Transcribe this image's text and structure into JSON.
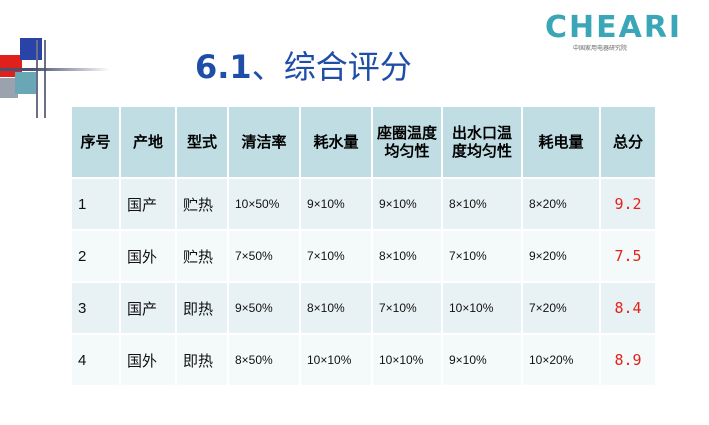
{
  "logo": {
    "main": "CHEARI",
    "sub": "中国家用电器研究院"
  },
  "title": {
    "number": "6.1",
    "text": "、综合评分"
  },
  "table": {
    "headers": [
      "序号",
      "产地",
      "型式",
      "清洁率",
      "耗水量",
      "座圈温度均匀性",
      "出水口温度均匀性",
      "耗电量",
      "总分"
    ],
    "rows": [
      [
        "1",
        "国产",
        "贮热",
        "10×50%",
        "9×10%",
        "9×10%",
        "8×10%",
        "8×20%",
        "9.2"
      ],
      [
        "2",
        "国外",
        "贮热",
        "7×50%",
        "7×10%",
        "8×10%",
        "7×10%",
        "9×20%",
        "7.5"
      ],
      [
        "3",
        "国产",
        "即热",
        "9×50%",
        "8×10%",
        "7×10%",
        "10×10%",
        "7×20%",
        "8.4"
      ],
      [
        "4",
        "国外",
        "即热",
        "8×50%",
        "10×10%",
        "10×10%",
        "9×10%",
        "10×20%",
        "8.9"
      ]
    ]
  },
  "colors": {
    "header_bg": "#bfdde3",
    "row_bg": "#e8f2f5",
    "title": "#1f4ea8",
    "total": "#e3221a",
    "logo": "#3aa6b7"
  }
}
